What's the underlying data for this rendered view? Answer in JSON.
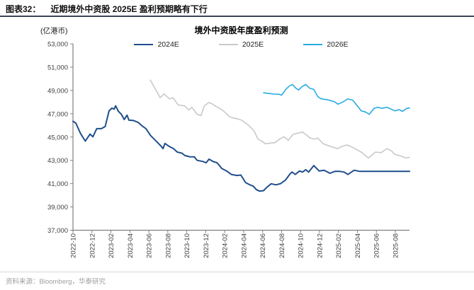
{
  "caption": {
    "figure_number": "图表32：",
    "figure_title": "近期境外中资股 2025E 盈利预期略有下行"
  },
  "source_note": "资料来源：Bloomberg，华泰研究",
  "colors": {
    "caption_rule": "#3a4553",
    "axis": "#808080",
    "tick_text": "#404040",
    "series_2024e": "#1f4e8c",
    "series_2025e": "#c9c9c9",
    "series_2026e": "#29abe2"
  },
  "chart_data": {
    "type": "line",
    "title": "境外中资股年度盈利预测",
    "y_unit": "(亿港币)",
    "ylabel": "",
    "xlabel": "",
    "ylim": [
      37000,
      53000
    ],
    "y_tick_step": 2000,
    "grid": false,
    "legend_position": "top-center",
    "x_axis_note": "x in months after 2022-10; labeled ticks every 2 months",
    "x_tick_labels": [
      "2022-10",
      "2022-12",
      "2023-02",
      "2023-04",
      "2023-06",
      "2023-08",
      "2023-10",
      "2023-12",
      "2024-02",
      "2024-04",
      "2024-06",
      "2024-08",
      "2024-10",
      "2024-12",
      "2025-02",
      "2025-04",
      "2025-06",
      "2025-08"
    ],
    "x_range_months": [
      0,
      35.5
    ],
    "series": [
      {
        "name": "2024E",
        "color": "#1f4e8c",
        "width": 2,
        "points": [
          [
            0,
            46350
          ],
          [
            0.3,
            46200
          ],
          [
            0.8,
            45300
          ],
          [
            1.3,
            44650
          ],
          [
            1.8,
            45250
          ],
          [
            2.1,
            45020
          ],
          [
            2.5,
            45720
          ],
          [
            3.0,
            45720
          ],
          [
            3.4,
            45900
          ],
          [
            3.8,
            47250
          ],
          [
            4.1,
            47480
          ],
          [
            4.35,
            47400
          ],
          [
            4.5,
            47680
          ],
          [
            4.8,
            47200
          ],
          [
            5.1,
            46950
          ],
          [
            5.4,
            46500
          ],
          [
            5.7,
            46880
          ],
          [
            5.9,
            46450
          ],
          [
            6.4,
            46420
          ],
          [
            6.9,
            46250
          ],
          [
            7.3,
            45950
          ],
          [
            7.7,
            45720
          ],
          [
            8.2,
            45120
          ],
          [
            8.7,
            44720
          ],
          [
            9.3,
            44210
          ],
          [
            9.5,
            44010
          ],
          [
            9.7,
            44450
          ],
          [
            10.1,
            44220
          ],
          [
            10.6,
            44010
          ],
          [
            11.0,
            43710
          ],
          [
            11.5,
            43610
          ],
          [
            11.8,
            43410
          ],
          [
            12.3,
            43310
          ],
          [
            12.8,
            43300
          ],
          [
            13.1,
            43000
          ],
          [
            13.7,
            42900
          ],
          [
            14.05,
            42790
          ],
          [
            14.35,
            43100
          ],
          [
            14.8,
            42890
          ],
          [
            15.2,
            42790
          ],
          [
            15.7,
            42300
          ],
          [
            16.2,
            42090
          ],
          [
            16.7,
            41790
          ],
          [
            17.3,
            41700
          ],
          [
            17.7,
            41740
          ],
          [
            18.2,
            41090
          ],
          [
            18.7,
            40880
          ],
          [
            19.0,
            40790
          ],
          [
            19.35,
            40480
          ],
          [
            19.7,
            40350
          ],
          [
            20.1,
            40400
          ],
          [
            20.45,
            40690
          ],
          [
            20.9,
            40990
          ],
          [
            21.4,
            40900
          ],
          [
            21.9,
            41000
          ],
          [
            22.4,
            41300
          ],
          [
            22.85,
            41790
          ],
          [
            23.1,
            42000
          ],
          [
            23.45,
            41790
          ],
          [
            23.9,
            42090
          ],
          [
            24.2,
            41990
          ],
          [
            24.55,
            42200
          ],
          [
            24.85,
            41990
          ],
          [
            25.4,
            42550
          ],
          [
            25.95,
            42090
          ],
          [
            26.5,
            42150
          ],
          [
            27.1,
            41890
          ],
          [
            27.6,
            42050
          ],
          [
            28.1,
            42060
          ],
          [
            28.6,
            41990
          ],
          [
            29.0,
            41790
          ],
          [
            29.65,
            42150
          ],
          [
            30.2,
            42060
          ],
          [
            31.5,
            42050
          ],
          [
            33,
            42050
          ],
          [
            34.5,
            42050
          ],
          [
            35.5,
            42050
          ]
        ]
      },
      {
        "name": "2025E",
        "color": "#c9c9c9",
        "width": 1.6,
        "points": [
          [
            8.15,
            49890
          ],
          [
            8.6,
            49250
          ],
          [
            9.2,
            48380
          ],
          [
            9.6,
            48700
          ],
          [
            10.2,
            48270
          ],
          [
            10.55,
            48380
          ],
          [
            11.1,
            47760
          ],
          [
            11.8,
            47660
          ],
          [
            12.2,
            47320
          ],
          [
            12.55,
            47550
          ],
          [
            13.1,
            46950
          ],
          [
            13.5,
            46850
          ],
          [
            13.85,
            47660
          ],
          [
            14.3,
            47960
          ],
          [
            14.6,
            47890
          ],
          [
            15.0,
            47660
          ],
          [
            15.5,
            47460
          ],
          [
            16.0,
            47150
          ],
          [
            16.5,
            46750
          ],
          [
            16.9,
            46640
          ],
          [
            17.4,
            46550
          ],
          [
            17.8,
            46440
          ],
          [
            18.5,
            46030
          ],
          [
            19.1,
            45530
          ],
          [
            19.5,
            44820
          ],
          [
            19.9,
            44660
          ],
          [
            20.3,
            44420
          ],
          [
            20.8,
            44480
          ],
          [
            21.3,
            44520
          ],
          [
            21.8,
            44820
          ],
          [
            22.25,
            45030
          ],
          [
            22.7,
            44720
          ],
          [
            23.2,
            45230
          ],
          [
            23.7,
            45330
          ],
          [
            24.2,
            45430
          ],
          [
            24.7,
            45130
          ],
          [
            25.0,
            44920
          ],
          [
            25.45,
            44820
          ],
          [
            25.8,
            44920
          ],
          [
            26.4,
            44420
          ],
          [
            27.1,
            44210
          ],
          [
            27.9,
            44010
          ],
          [
            28.4,
            44210
          ],
          [
            28.9,
            44320
          ],
          [
            29.5,
            44110
          ],
          [
            30.4,
            43710
          ],
          [
            31.15,
            43200
          ],
          [
            31.9,
            43710
          ],
          [
            32.5,
            43660
          ],
          [
            33.1,
            44010
          ],
          [
            33.6,
            43810
          ],
          [
            33.95,
            43510
          ],
          [
            34.5,
            43400
          ],
          [
            35.1,
            43200
          ],
          [
            35.5,
            43260
          ]
        ]
      },
      {
        "name": "2026E",
        "color": "#29abe2",
        "width": 1.6,
        "points": [
          [
            20.1,
            48800
          ],
          [
            20.7,
            48740
          ],
          [
            21.2,
            48690
          ],
          [
            21.75,
            48670
          ],
          [
            22.0,
            48590
          ],
          [
            22.45,
            49100
          ],
          [
            22.85,
            49400
          ],
          [
            23.15,
            49510
          ],
          [
            23.5,
            49200
          ],
          [
            23.8,
            49040
          ],
          [
            24.2,
            49360
          ],
          [
            24.55,
            49510
          ],
          [
            24.95,
            49200
          ],
          [
            25.4,
            49090
          ],
          [
            25.8,
            48490
          ],
          [
            26.15,
            48290
          ],
          [
            26.9,
            48190
          ],
          [
            27.6,
            48020
          ],
          [
            27.95,
            47820
          ],
          [
            28.5,
            48020
          ],
          [
            28.95,
            48270
          ],
          [
            29.5,
            48170
          ],
          [
            30.4,
            47250
          ],
          [
            30.85,
            47150
          ],
          [
            31.25,
            46950
          ],
          [
            31.75,
            47460
          ],
          [
            32.15,
            47560
          ],
          [
            32.6,
            47460
          ],
          [
            33.1,
            47560
          ],
          [
            33.95,
            47250
          ],
          [
            34.4,
            47350
          ],
          [
            34.75,
            47200
          ],
          [
            35.2,
            47460
          ],
          [
            35.5,
            47490
          ]
        ]
      }
    ]
  }
}
